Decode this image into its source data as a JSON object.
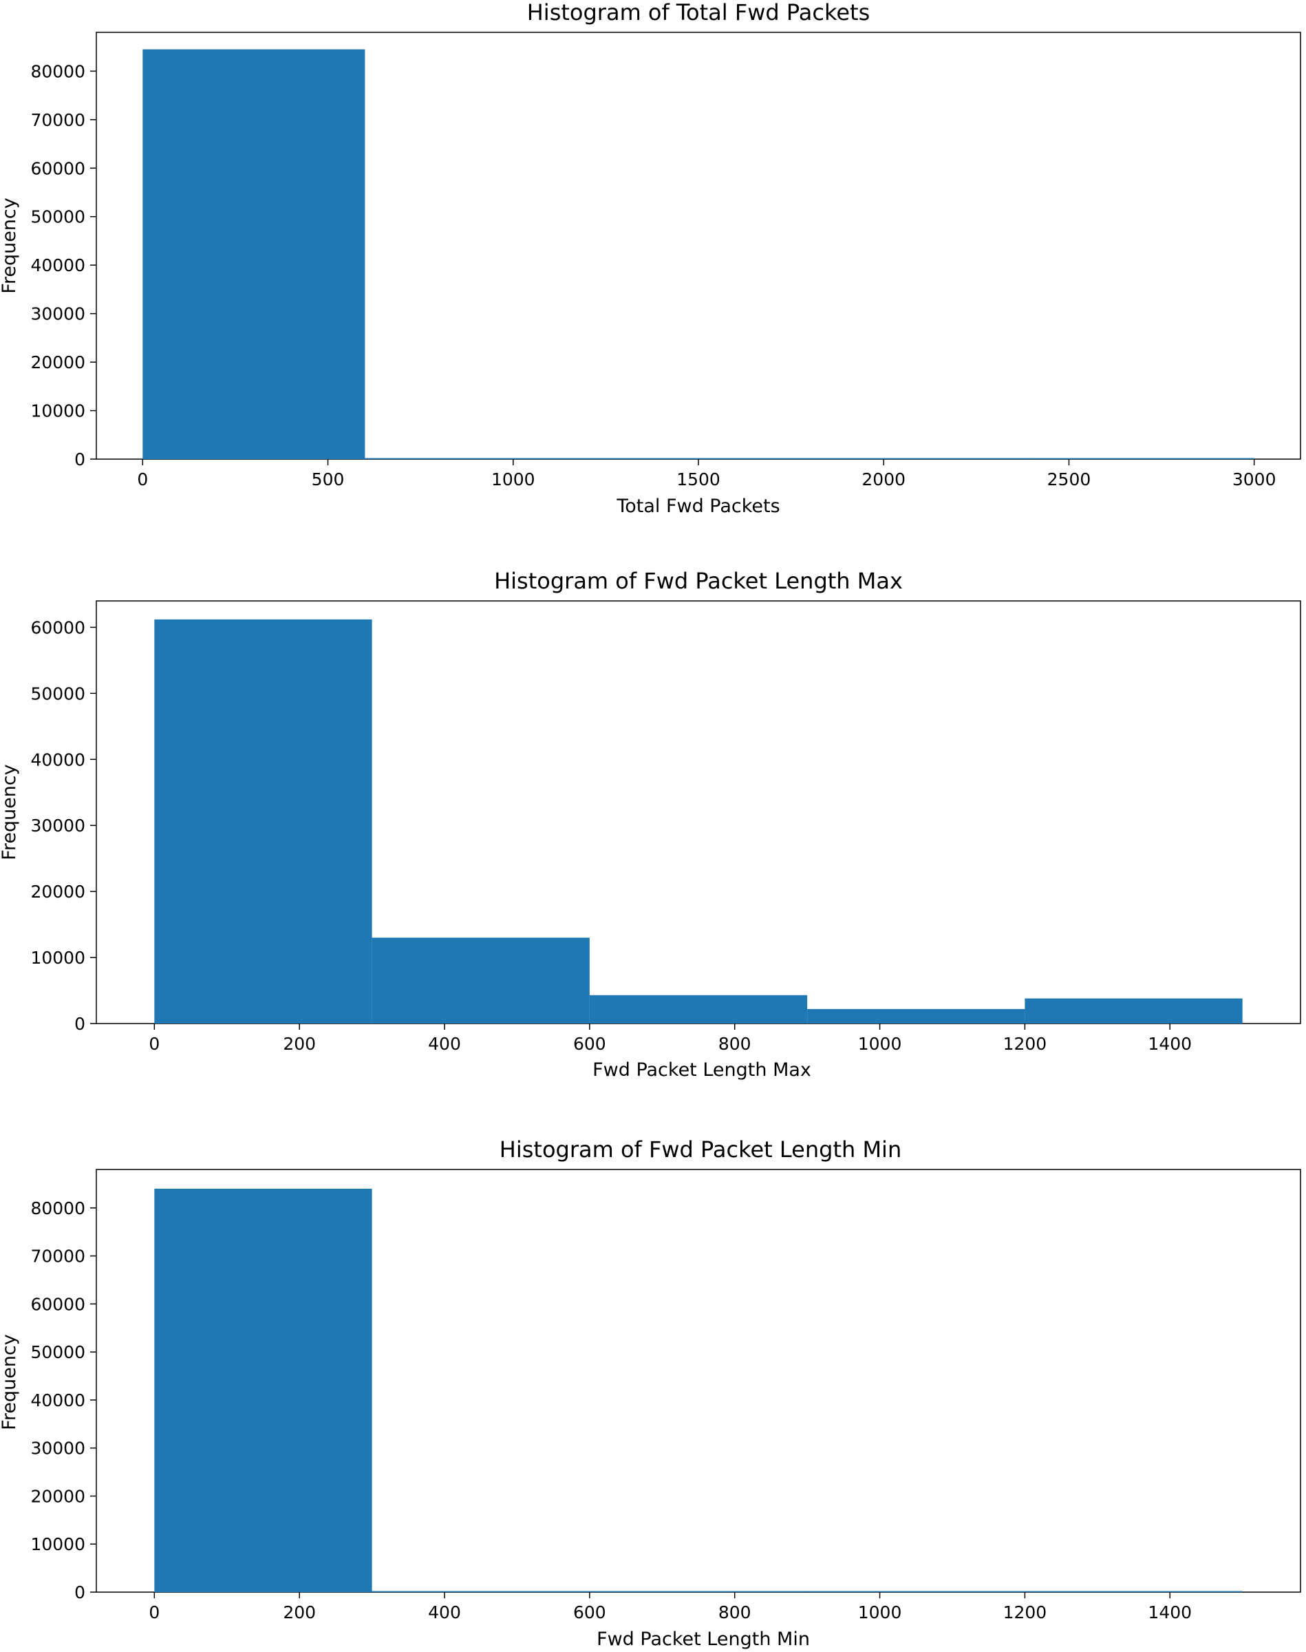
{
  "chart_data": [
    {
      "type": "bar",
      "title": "Histogram of  Total Fwd Packets",
      "xlabel": "Total Fwd Packets",
      "ylabel": "Frequency",
      "xlim": [
        -125,
        3125
      ],
      "ylim": [
        0,
        88000
      ],
      "xticks": [
        0,
        500,
        1000,
        1500,
        2000,
        2500,
        3000
      ],
      "yticks": [
        0,
        10000,
        20000,
        30000,
        40000,
        50000,
        60000,
        70000,
        80000
      ],
      "bins": [
        {
          "x0": 0,
          "x1": 600,
          "value": 84500
        },
        {
          "x0": 600,
          "x1": 1200,
          "value": 150
        },
        {
          "x0": 1200,
          "x1": 1800,
          "value": 40
        },
        {
          "x0": 1800,
          "x1": 2400,
          "value": 20
        },
        {
          "x0": 2400,
          "x1": 3000,
          "value": 10
        }
      ],
      "color": "#1f77b4",
      "grid": false
    },
    {
      "type": "bar",
      "title": "Histogram of  Fwd Packet Length Max",
      "xlabel": "Fwd Packet Length Max",
      "ylabel": "Frequency",
      "xlim": [
        -80,
        1580
      ],
      "ylim": [
        0,
        64000
      ],
      "xticks": [
        0,
        200,
        400,
        600,
        800,
        1000,
        1200,
        1400
      ],
      "yticks": [
        0,
        10000,
        20000,
        30000,
        40000,
        50000,
        60000
      ],
      "bins": [
        {
          "x0": 0,
          "x1": 300,
          "value": 61200
        },
        {
          "x0": 300,
          "x1": 600,
          "value": 13000
        },
        {
          "x0": 600,
          "x1": 900,
          "value": 4300
        },
        {
          "x0": 900,
          "x1": 1200,
          "value": 2200
        },
        {
          "x0": 1200,
          "x1": 1500,
          "value": 3800
        }
      ],
      "color": "#1f77b4",
      "grid": false
    },
    {
      "type": "bar",
      "title": "Histogram of  Fwd Packet Length Min",
      "xlabel": "Fwd Packet Length Min",
      "ylabel": "Frequency",
      "xlim": [
        -80,
        1580
      ],
      "ylim": [
        0,
        88000
      ],
      "xticks": [
        0,
        200,
        400,
        600,
        800,
        1000,
        1200,
        1400
      ],
      "yticks": [
        0,
        10000,
        20000,
        30000,
        40000,
        50000,
        60000,
        70000,
        80000
      ],
      "bins": [
        {
          "x0": 0,
          "x1": 300,
          "value": 84000
        },
        {
          "x0": 300,
          "x1": 600,
          "value": 150
        },
        {
          "x0": 600,
          "x1": 900,
          "value": 40
        },
        {
          "x0": 900,
          "x1": 1200,
          "value": 20
        },
        {
          "x0": 1200,
          "x1": 1500,
          "value": 120
        }
      ],
      "color": "#1f77b4",
      "grid": false
    }
  ]
}
